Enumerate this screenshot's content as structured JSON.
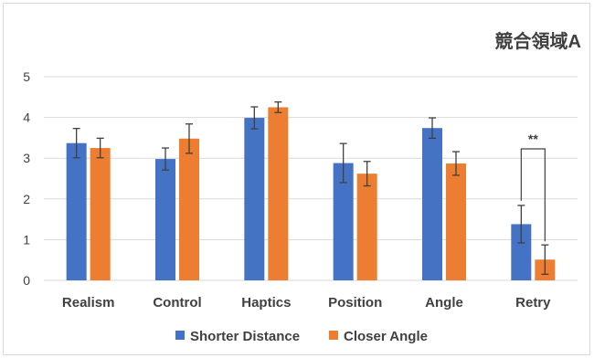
{
  "chart_data": {
    "type": "bar",
    "title": "競合領域A",
    "categories": [
      "Realism",
      "Control",
      "Haptics",
      "Position",
      "Angle",
      "Retry"
    ],
    "ylim": [
      0,
      5
    ],
    "yticks": [
      0,
      1,
      2,
      3,
      4,
      5
    ],
    "grid": true,
    "legend_position": "bottom",
    "series": [
      {
        "name": "Shorter Distance",
        "color": "#4472c4",
        "values": [
          3.37,
          2.98,
          3.99,
          2.88,
          3.74,
          1.38
        ],
        "error": [
          0.36,
          0.27,
          0.27,
          0.48,
          0.25,
          0.46
        ]
      },
      {
        "name": "Closer Angle",
        "color": "#ed7d31",
        "values": [
          3.25,
          3.48,
          4.25,
          2.62,
          2.87,
          0.51
        ],
        "error": [
          0.24,
          0.36,
          0.13,
          0.3,
          0.29,
          0.36
        ]
      }
    ],
    "annotations": [
      {
        "category": "Retry",
        "label": "**"
      }
    ]
  }
}
